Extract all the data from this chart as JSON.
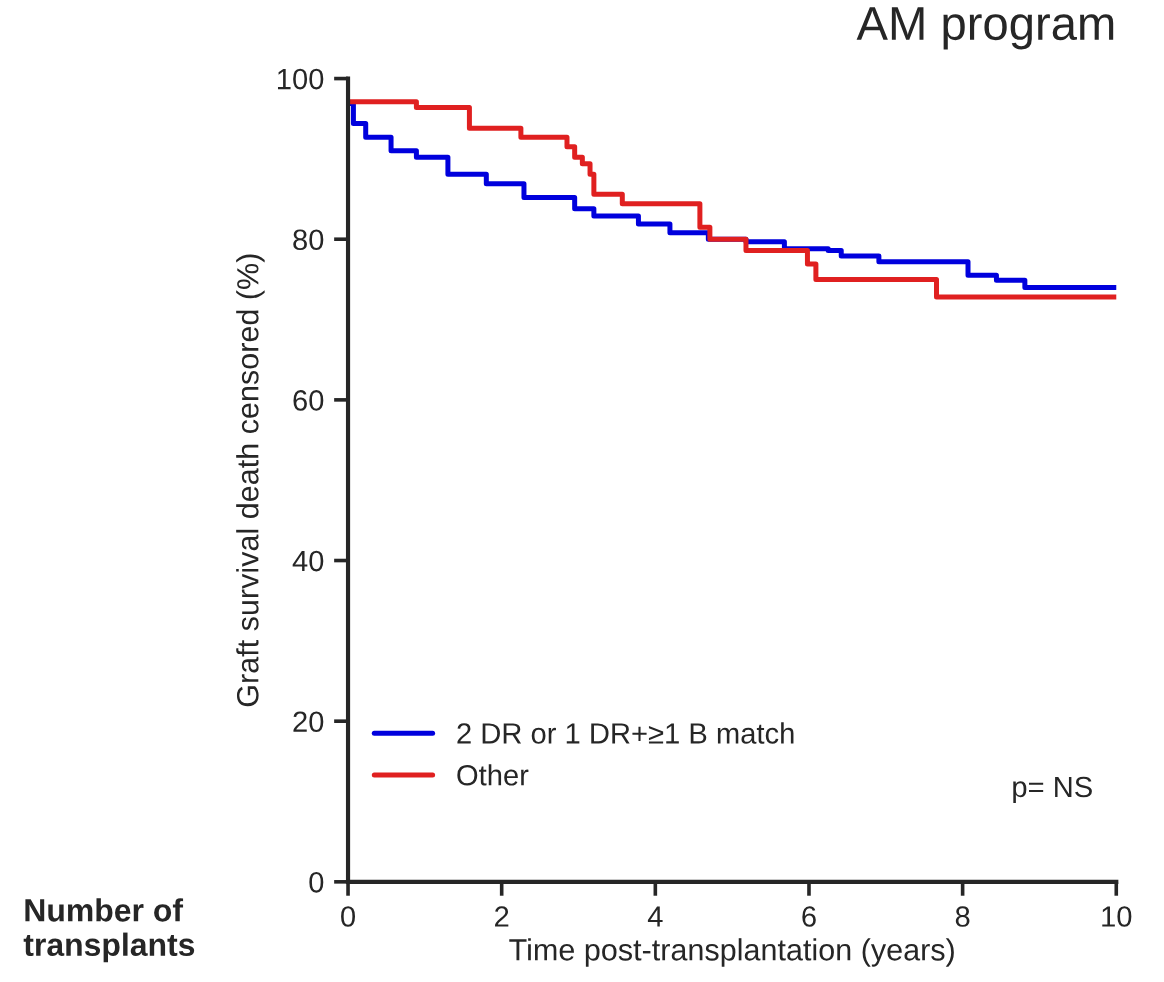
{
  "chart_data": {
    "type": "step",
    "title": "AM program",
    "xlabel": "Time post-transplantation (years)",
    "ylabel": "Graft survival death censored (%)",
    "annotations": [
      "Number of\ntransplants",
      "p= NS"
    ],
    "series": [
      {
        "name": "2 DR or 1 DR+≥1 B match",
        "color": "#0000dd",
        "x": [
          0,
          0.07,
          0.23,
          0.56,
          0.89,
          1.3,
          1.8,
          2.29,
          2.95,
          3.2,
          3.78,
          4.19,
          4.69,
          5.18,
          5.68,
          6.25,
          6.42,
          6.91,
          8.07,
          8.44,
          8.81,
          10
        ],
        "values": [
          96.9,
          94.4,
          92.7,
          91.0,
          90.2,
          88.1,
          86.9,
          85.2,
          83.8,
          82.9,
          81.9,
          80.8,
          80.0,
          79.7,
          78.8,
          78.6,
          77.9,
          77.2,
          75.5,
          74.9,
          74.0,
          74.0
        ]
      },
      {
        "name": "Other",
        "color": "#e02020",
        "x": [
          0,
          0.89,
          1.58,
          2.25,
          2.85,
          2.95,
          3.05,
          3.15,
          3.2,
          3.57,
          4.58,
          4.71,
          5.18,
          5.98,
          6.09,
          7.66,
          10
        ],
        "values": [
          97.1,
          96.4,
          93.8,
          92.7,
          91.5,
          90.2,
          89.4,
          88.1,
          85.6,
          84.4,
          81.5,
          80.0,
          78.6,
          76.9,
          75.0,
          72.8,
          72.8
        ]
      }
    ],
    "xlim": [
      0,
      10
    ],
    "ylim": [
      0,
      100
    ],
    "xticks": [
      0,
      2,
      4,
      6,
      8,
      10
    ],
    "yticks": [
      0,
      20,
      40,
      60,
      80,
      100
    ],
    "grid": false,
    "legend": "bottom left"
  }
}
